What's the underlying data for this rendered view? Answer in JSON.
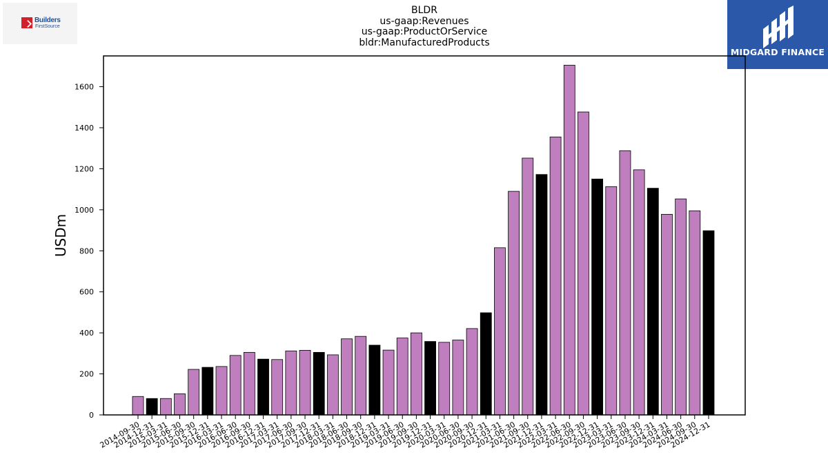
{
  "header": {
    "left_logo_text": "Builders",
    "left_logo_subtext": "FirstSource",
    "right_logo_text": "MIDGARD FINANCE"
  },
  "chart_data": {
    "type": "bar",
    "title": [
      "BLDR",
      "us-gaap:Revenues",
      "us-gaap:ProductOrService",
      "bldr:ManufacturedProducts"
    ],
    "xlabel": "",
    "ylabel": "USDm",
    "ylim": [
      0,
      1750
    ],
    "yticks": [
      0,
      200,
      400,
      600,
      800,
      1000,
      1200,
      1400,
      1600
    ],
    "grid": false,
    "legend": "none",
    "colors": {
      "quarter": "#bf7fbf",
      "year_end": "#000000",
      "edge": "#000000"
    },
    "categories": [
      "2014-09-30",
      "2014-12-31",
      "2015-03-31",
      "2015-06-30",
      "2015-09-30",
      "2015-12-31",
      "2016-03-31",
      "2016-06-30",
      "2016-09-30",
      "2016-12-31",
      "2017-03-31",
      "2017-06-30",
      "2017-09-30",
      "2017-12-31",
      "2018-03-31",
      "2018-06-30",
      "2018-09-30",
      "2018-12-31",
      "2019-03-31",
      "2019-06-30",
      "2019-09-30",
      "2019-12-31",
      "2020-03-31",
      "2020-06-30",
      "2020-09-30",
      "2020-12-31",
      "2021-03-31",
      "2021-06-30",
      "2021-09-30",
      "2021-12-31",
      "2022-03-31",
      "2022-06-30",
      "2022-09-30",
      "2022-12-31",
      "2023-03-31",
      "2023-06-30",
      "2023-09-30",
      "2023-12-31",
      "2024-03-31",
      "2024-06-30",
      "2024-09-30",
      "2024-12-31"
    ],
    "values": [
      90,
      80,
      80,
      103,
      222,
      232,
      236,
      290,
      305,
      272,
      270,
      312,
      315,
      305,
      293,
      371,
      383,
      340,
      316,
      375,
      400,
      358,
      354,
      365,
      421,
      498,
      815,
      1090,
      1252,
      1172,
      1355,
      1705,
      1477,
      1150,
      1113,
      1288,
      1195,
      1105,
      978,
      1053,
      995,
      898
    ]
  }
}
